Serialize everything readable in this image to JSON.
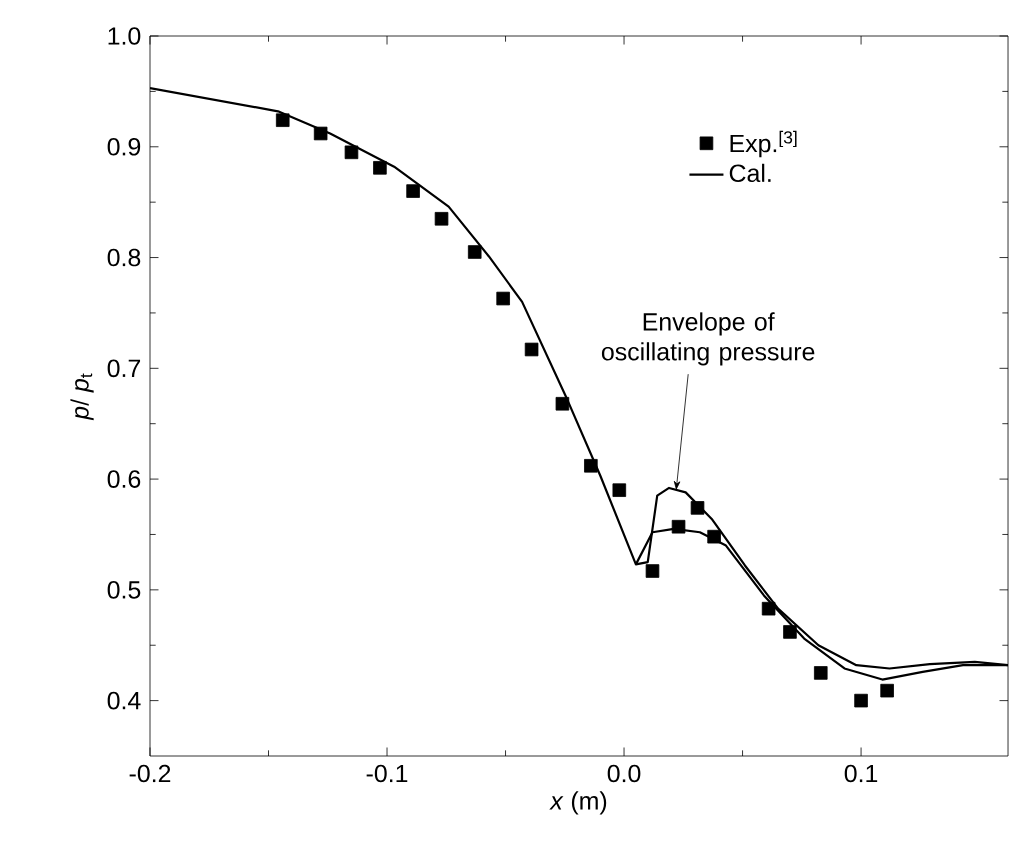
{
  "chart_data": {
    "type": "line",
    "xlabel": "*x* (m)",
    "ylabel": "*p*/ *p*$_{t}$",
    "xlim": [
      -0.2,
      0.162
    ],
    "ylim": [
      0.35,
      1.0
    ],
    "xticks": [
      -0.2,
      -0.1,
      {
        "value": 0,
        "label": "0.0"
      },
      0.1
    ],
    "yticks": [
      0.4,
      0.5,
      0.6,
      0.7,
      0.8,
      0.9,
      {
        "value": 1,
        "label": "1.0"
      }
    ],
    "grid": false,
    "legend": "top right",
    "annotations": [
      {
        "text": "Envelope of oscillating pressure",
        "x": 0.022,
        "y": 0.59
      }
    ],
    "series": [
      {
        "name": "Exp.$^{[3]}$",
        "type": "scatter",
        "marker": "square",
        "color": "#000000",
        "x": [
          -0.144,
          -0.128,
          -0.115,
          -0.103,
          -0.089,
          -0.077,
          -0.063,
          -0.051,
          -0.039,
          -0.026,
          -0.014,
          -0.002,
          0.012,
          0.023,
          0.031,
          0.038,
          0.061,
          0.07,
          0.083,
          0.1,
          0.111
        ],
        "values": [
          0.924,
          0.912,
          0.895,
          0.881,
          0.86,
          0.835,
          0.805,
          0.763,
          0.717,
          0.668,
          0.612,
          0.59,
          0.517,
          0.557,
          0.574,
          0.548,
          0.483,
          0.462,
          0.425,
          0.4,
          0.409
        ]
      },
      {
        "name": "Cal.",
        "color": "#000000",
        "x": [
          -0.2,
          -0.146,
          -0.124,
          -0.097,
          -0.074,
          -0.057,
          -0.043,
          -0.024,
          -0.01,
          0.005,
          0.01,
          0.014,
          0.019,
          0.026,
          0.037,
          0.051,
          0.065,
          0.082,
          0.098,
          0.112,
          0.129,
          0.148,
          0.162
        ],
        "values": [
          0.953,
          0.932,
          0.912,
          0.882,
          0.846,
          0.801,
          0.76,
          0.672,
          0.603,
          0.523,
          0.525,
          0.585,
          0.592,
          0.588,
          0.564,
          0.522,
          0.483,
          0.45,
          0.432,
          0.429,
          0.433,
          0.435,
          0.432
        ]
      },
      {
        "color": "#000000",
        "x": [
          0.005,
          0.012,
          0.021,
          0.032,
          0.043,
          0.059,
          0.076,
          0.093,
          0.109,
          0.126,
          0.143,
          0.162
        ],
        "values": [
          0.523,
          0.552,
          0.555,
          0.552,
          0.54,
          0.495,
          0.456,
          0.429,
          0.419,
          0.426,
          0.432,
          0.432
        ]
      }
    ]
  }
}
